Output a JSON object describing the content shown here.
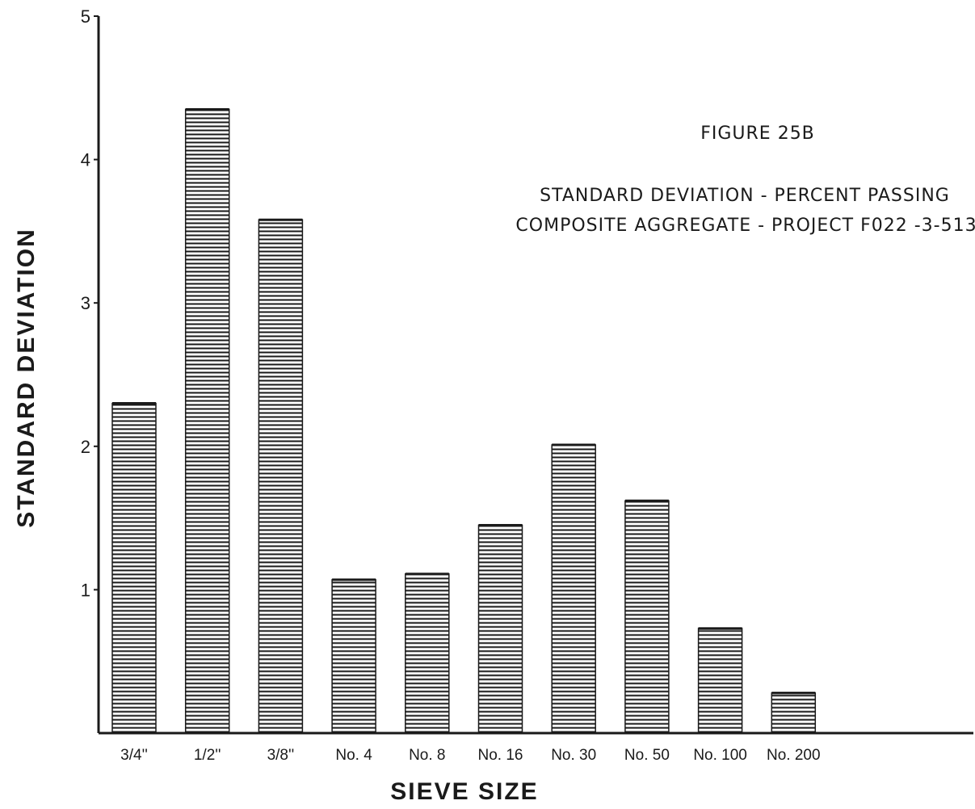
{
  "figure_label": "FIGURE 25B",
  "caption_line1": "STANDARD DEVIATION - PERCENT PASSING",
  "caption_line2": "COMPOSITE AGGREGATE - PROJECT F022 -3-513",
  "chart_data": {
    "type": "bar",
    "title": "STANDARD DEVIATION - PERCENT PASSING COMPOSITE AGGREGATE - PROJECT F022 -3-513",
    "xlabel": "SIEVE SIZE",
    "ylabel": "STANDARD DEVIATION",
    "categories": [
      "3/4''",
      "1/2''",
      "3/8''",
      "No. 4",
      "No. 8",
      "No. 16",
      "No. 30",
      "No. 50",
      "No. 100",
      "No. 200"
    ],
    "values": [
      2.3,
      4.35,
      3.58,
      1.07,
      1.11,
      1.45,
      2.01,
      1.62,
      0.73,
      0.28
    ],
    "ylim": [
      0,
      5
    ],
    "yticks": [
      "1",
      "2",
      "3",
      "4",
      "5"
    ],
    "grid": false,
    "legend": "none",
    "bar_color": "#1a1a1a"
  }
}
